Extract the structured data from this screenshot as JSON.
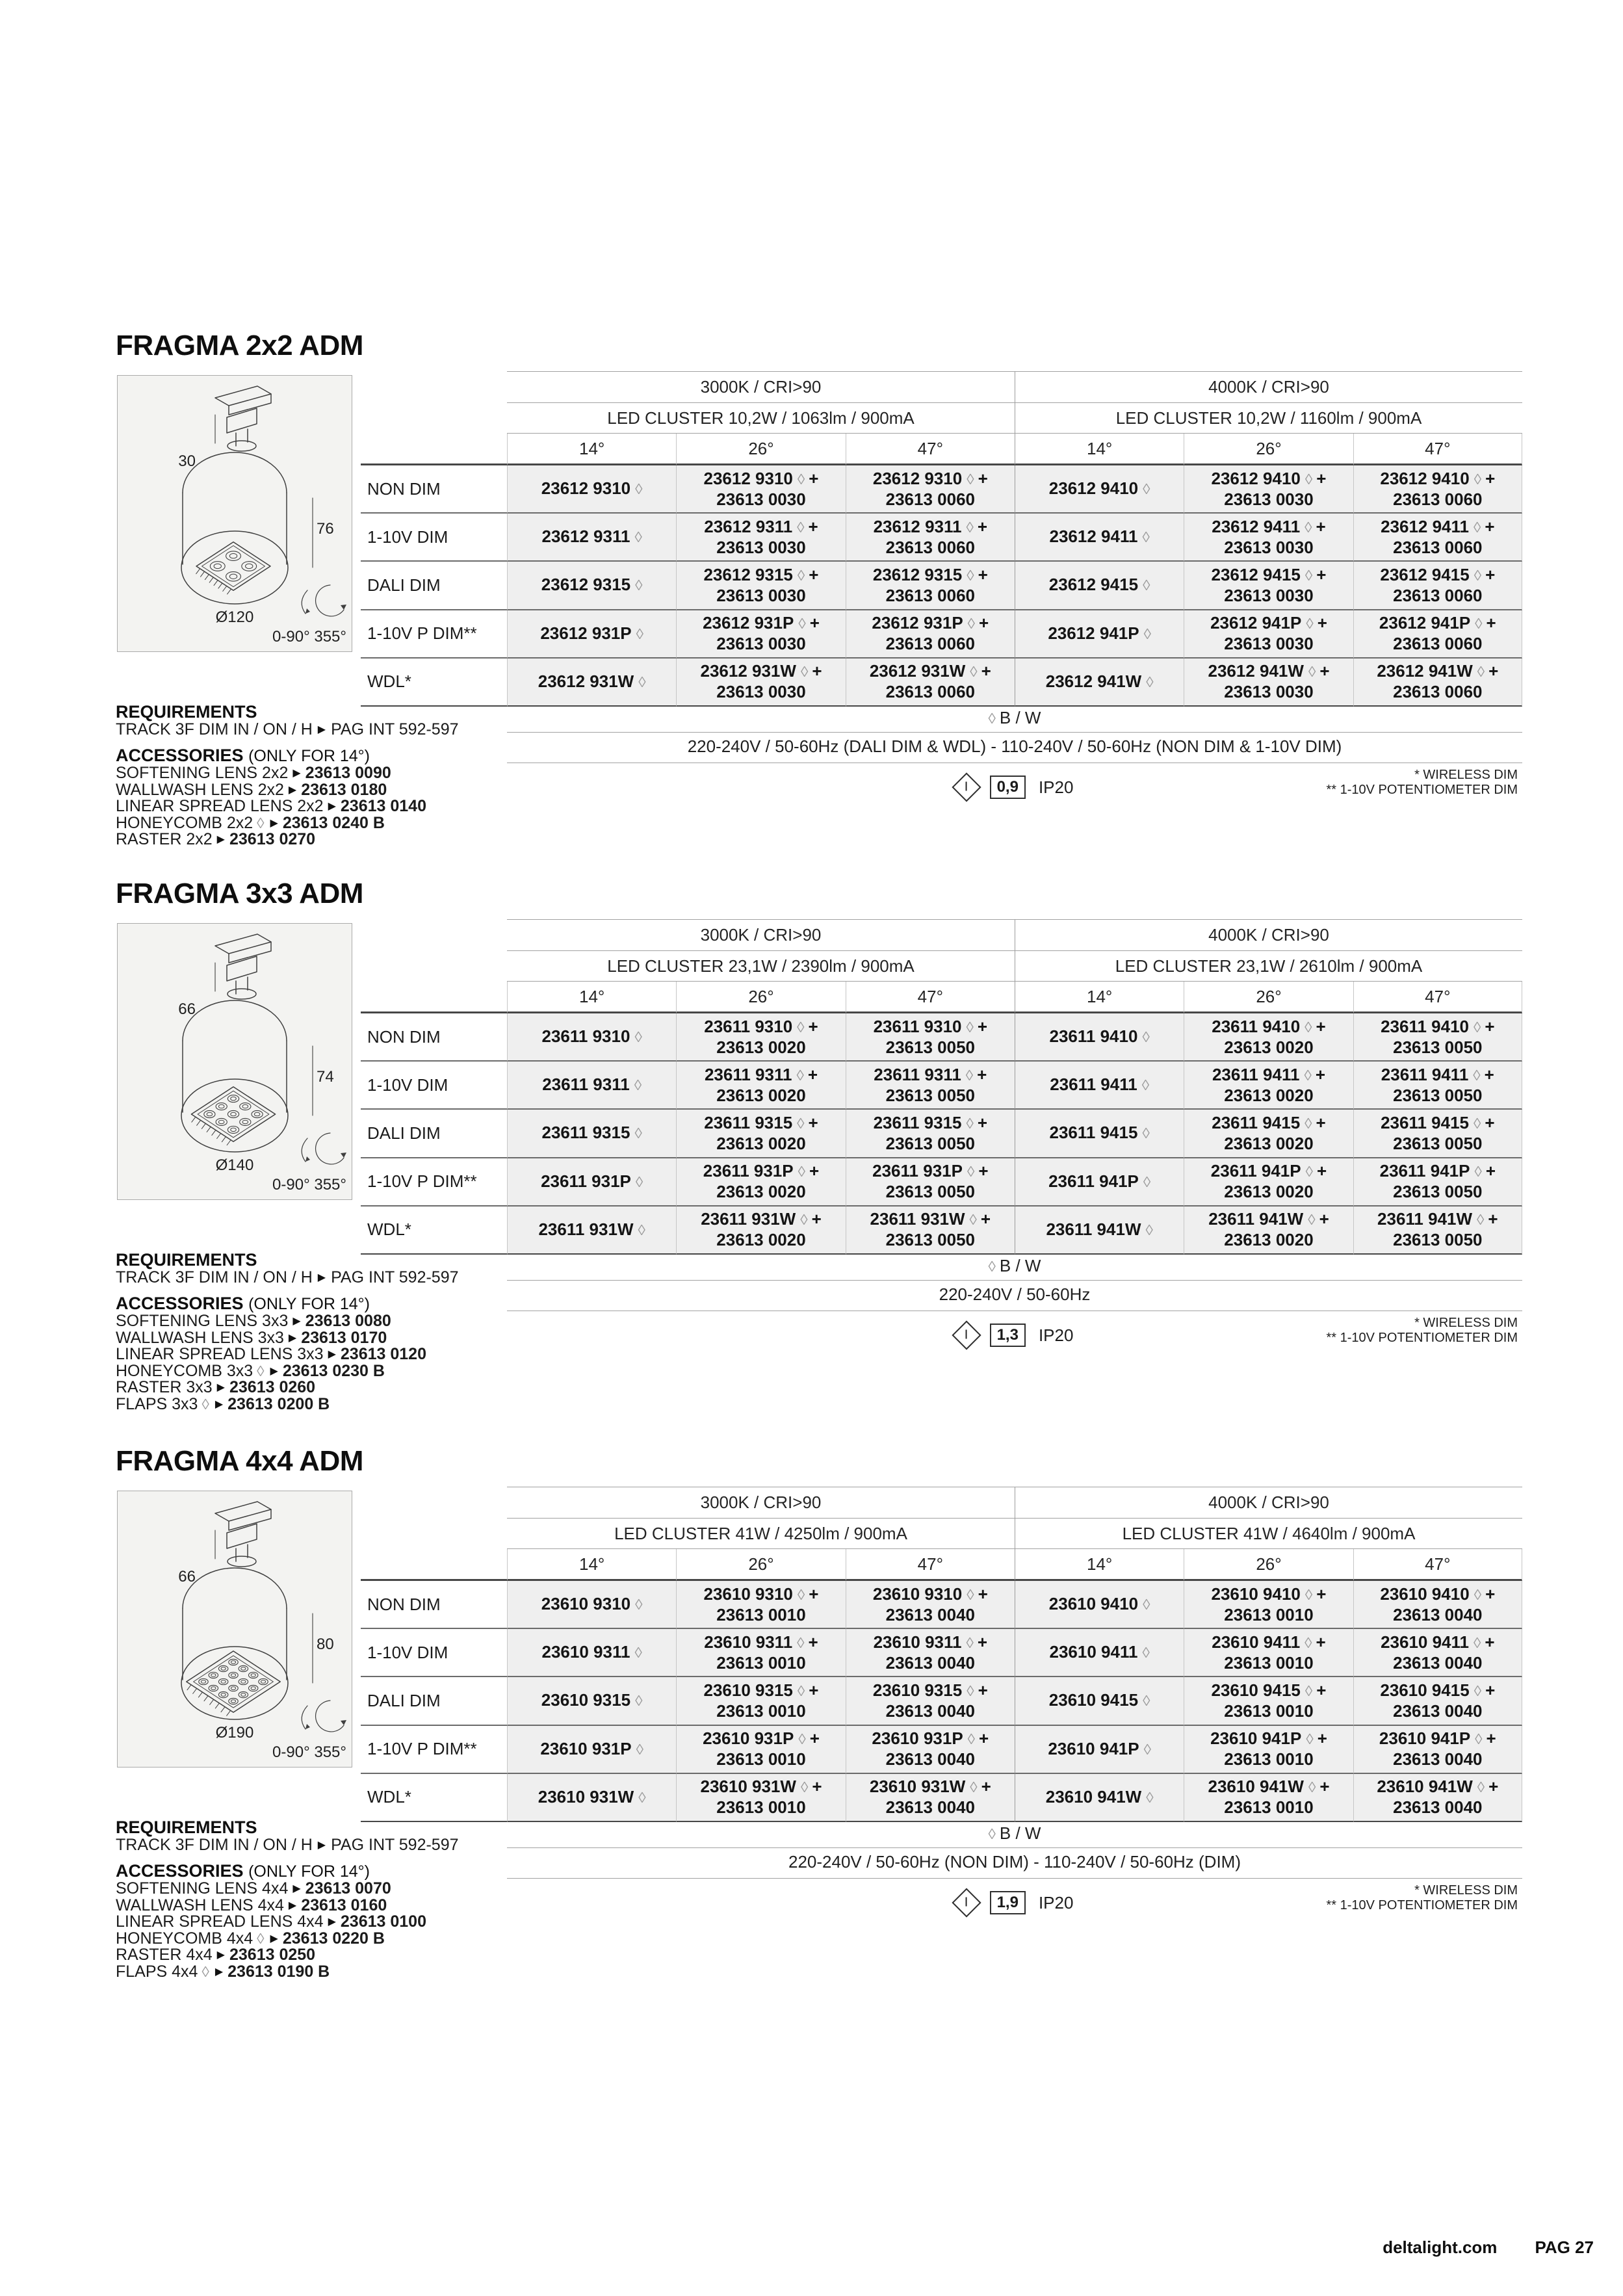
{
  "page": {
    "footer": {
      "site": "deltalight.com",
      "page_label": "PAG 27"
    }
  },
  "notes": {
    "diamond": "◊",
    "plus": "+",
    "arrow": "▶",
    "class1": "I",
    "diamond_note": "B / W",
    "wireless": "* WIRELESS DIM",
    "potentiometer": "** 1-10V POTENTIOMETER DIM",
    "ip": "IP20"
  },
  "sections": [
    {
      "id": "fragma-2x2-adm",
      "title": "FRAGMA 2x2 ADM",
      "diagram": {
        "grid": 2,
        "top_dim": "30",
        "height_dim": "76",
        "diameter": "Ø120",
        "rotation": "0-90° 355°"
      },
      "header": {
        "left_temp": "3000K / CRI>90",
        "right_temp": "4000K / CRI>90",
        "left_cluster": "LED CLUSTER 10,2W / 1063lm / 900mA",
        "right_cluster": "LED CLUSTER 10,2W / 1160lm / 900mA",
        "angles": [
          "14°",
          "26°",
          "47°",
          "14°",
          "26°",
          "47°"
        ]
      },
      "rows": [
        {
          "label": "NON DIM",
          "cells": [
            [
              "23612 9310",
              ""
            ],
            [
              "23612 9310",
              "23613 0030"
            ],
            [
              "23612 9310",
              "23613 0060"
            ],
            [
              "23612 9410",
              ""
            ],
            [
              "23612 9410",
              "23613 0030"
            ],
            [
              "23612 9410",
              "23613 0060"
            ]
          ]
        },
        {
          "label": "1-10V DIM",
          "cells": [
            [
              "23612 9311",
              ""
            ],
            [
              "23612 9311",
              "23613 0030"
            ],
            [
              "23612 9311",
              "23613 0060"
            ],
            [
              "23612 9411",
              ""
            ],
            [
              "23612 9411",
              "23613 0030"
            ],
            [
              "23612 9411",
              "23613 0060"
            ]
          ]
        },
        {
          "label": "DALI DIM",
          "cells": [
            [
              "23612 9315",
              ""
            ],
            [
              "23612 9315",
              "23613 0030"
            ],
            [
              "23612 9315",
              "23613 0060"
            ],
            [
              "23612 9415",
              ""
            ],
            [
              "23612 9415",
              "23613 0030"
            ],
            [
              "23612 9415",
              "23613 0060"
            ]
          ]
        },
        {
          "label": "1-10V P DIM**",
          "cells": [
            [
              "23612 931P",
              ""
            ],
            [
              "23612 931P",
              "23613 0030"
            ],
            [
              "23612 931P",
              "23613 0060"
            ],
            [
              "23612 941P",
              ""
            ],
            [
              "23612 941P",
              "23613 0030"
            ],
            [
              "23612 941P",
              "23613 0060"
            ]
          ]
        },
        {
          "label": "WDL*",
          "cells": [
            [
              "23612 931W",
              ""
            ],
            [
              "23612 931W",
              "23613 0030"
            ],
            [
              "23612 931W",
              "23613 0060"
            ],
            [
              "23612 941W",
              ""
            ],
            [
              "23612 941W",
              "23613 0030"
            ],
            [
              "23612 941W",
              "23613 0060"
            ]
          ]
        }
      ],
      "voltage": "220-240V / 50-60Hz (DALI DIM & WDL)  -  110-240V / 50-60Hz (NON DIM & 1-10V DIM)",
      "weight": "0,9",
      "requirements": {
        "heading": "REQUIREMENTS",
        "line_before": "TRACK 3F DIM IN / ON / H",
        "line_after": "PAG INT 592-597"
      },
      "accessories": {
        "heading": "ACCESSORIES",
        "note": "(ONLY FOR 14°)",
        "items": [
          {
            "label": "SOFTENING LENS 2x2",
            "diamond": false,
            "code": "23613 0090"
          },
          {
            "label": "WALLWASH LENS 2x2",
            "diamond": false,
            "code": "23613 0180"
          },
          {
            "label": "LINEAR SPREAD LENS 2x2",
            "diamond": false,
            "code": "23613 0140"
          },
          {
            "label": "HONEYCOMB 2x2",
            "diamond": true,
            "code": "23613 0240 B"
          },
          {
            "label": "RASTER 2x2",
            "diamond": false,
            "code": "23613 0270"
          }
        ]
      }
    },
    {
      "id": "fragma-3x3-adm",
      "title": "FRAGMA 3x3 ADM",
      "diagram": {
        "grid": 3,
        "top_dim": "66",
        "height_dim": "74",
        "diameter": "Ø140",
        "rotation": "0-90° 355°"
      },
      "header": {
        "left_temp": "3000K / CRI>90",
        "right_temp": "4000K / CRI>90",
        "left_cluster": "LED CLUSTER 23,1W / 2390lm / 900mA",
        "right_cluster": "LED CLUSTER 23,1W / 2610lm / 900mA",
        "angles": [
          "14°",
          "26°",
          "47°",
          "14°",
          "26°",
          "47°"
        ]
      },
      "rows": [
        {
          "label": "NON DIM",
          "cells": [
            [
              "23611 9310",
              ""
            ],
            [
              "23611 9310",
              "23613 0020"
            ],
            [
              "23611 9310",
              "23613 0050"
            ],
            [
              "23611 9410",
              ""
            ],
            [
              "23611 9410",
              "23613 0020"
            ],
            [
              "23611 9410",
              "23613 0050"
            ]
          ]
        },
        {
          "label": "1-10V DIM",
          "cells": [
            [
              "23611 9311",
              ""
            ],
            [
              "23611 9311",
              "23613 0020"
            ],
            [
              "23611 9311",
              "23613 0050"
            ],
            [
              "23611 9411",
              ""
            ],
            [
              "23611 9411",
              "23613 0020"
            ],
            [
              "23611 9411",
              "23613 0050"
            ]
          ]
        },
        {
          "label": "DALI DIM",
          "cells": [
            [
              "23611 9315",
              ""
            ],
            [
              "23611 9315",
              "23613 0020"
            ],
            [
              "23611 9315",
              "23613 0050"
            ],
            [
              "23611 9415",
              ""
            ],
            [
              "23611 9415",
              "23613 0020"
            ],
            [
              "23611 9415",
              "23613 0050"
            ]
          ]
        },
        {
          "label": "1-10V P DIM**",
          "cells": [
            [
              "23611 931P",
              ""
            ],
            [
              "23611 931P",
              "23613 0020"
            ],
            [
              "23611 931P",
              "23613 0050"
            ],
            [
              "23611 941P",
              ""
            ],
            [
              "23611 941P",
              "23613 0020"
            ],
            [
              "23611 941P",
              "23613 0050"
            ]
          ]
        },
        {
          "label": "WDL*",
          "cells": [
            [
              "23611 931W",
              ""
            ],
            [
              "23611 931W",
              "23613 0020"
            ],
            [
              "23611 931W",
              "23613 0050"
            ],
            [
              "23611 941W",
              ""
            ],
            [
              "23611 941W",
              "23613 0020"
            ],
            [
              "23611 941W",
              "23613 0050"
            ]
          ]
        }
      ],
      "voltage": "220-240V / 50-60Hz",
      "weight": "1,3",
      "requirements": {
        "heading": "REQUIREMENTS",
        "line_before": "TRACK 3F DIM IN / ON / H",
        "line_after": "PAG INT 592-597"
      },
      "accessories": {
        "heading": "ACCESSORIES",
        "note": "(ONLY FOR 14°)",
        "items": [
          {
            "label": "SOFTENING LENS 3x3",
            "diamond": false,
            "code": "23613 0080"
          },
          {
            "label": "WALLWASH LENS 3x3",
            "diamond": false,
            "code": "23613 0170"
          },
          {
            "label": "LINEAR SPREAD LENS 3x3",
            "diamond": false,
            "code": "23613 0120"
          },
          {
            "label": "HONEYCOMB 3x3",
            "diamond": true,
            "code": "23613 0230 B"
          },
          {
            "label": "RASTER 3x3",
            "diamond": false,
            "code": "23613 0260"
          },
          {
            "label": "FLAPS 3x3",
            "diamond": true,
            "code": "23613 0200 B"
          }
        ]
      }
    },
    {
      "id": "fragma-4x4-adm",
      "title": "FRAGMA 4x4 ADM",
      "diagram": {
        "grid": 4,
        "top_dim": "66",
        "height_dim": "80",
        "diameter": "Ø190",
        "rotation": "0-90° 355°"
      },
      "header": {
        "left_temp": "3000K / CRI>90",
        "right_temp": "4000K / CRI>90",
        "left_cluster": "LED CLUSTER 41W / 4250lm / 900mA",
        "right_cluster": "LED CLUSTER 41W / 4640lm / 900mA",
        "angles": [
          "14°",
          "26°",
          "47°",
          "14°",
          "26°",
          "47°"
        ]
      },
      "rows": [
        {
          "label": "NON DIM",
          "cells": [
            [
              "23610 9310",
              ""
            ],
            [
              "23610 9310",
              "23613 0010"
            ],
            [
              "23610 9310",
              "23613 0040"
            ],
            [
              "23610 9410",
              ""
            ],
            [
              "23610 9410",
              "23613 0010"
            ],
            [
              "23610 9410",
              "23613 0040"
            ]
          ]
        },
        {
          "label": "1-10V DIM",
          "cells": [
            [
              "23610 9311",
              ""
            ],
            [
              "23610 9311",
              "23613 0010"
            ],
            [
              "23610 9311",
              "23613 0040"
            ],
            [
              "23610 9411",
              ""
            ],
            [
              "23610 9411",
              "23613 0010"
            ],
            [
              "23610 9411",
              "23613 0040"
            ]
          ]
        },
        {
          "label": "DALI DIM",
          "cells": [
            [
              "23610 9315",
              ""
            ],
            [
              "23610 9315",
              "23613 0010"
            ],
            [
              "23610 9315",
              "23613 0040"
            ],
            [
              "23610 9415",
              ""
            ],
            [
              "23610 9415",
              "23613 0010"
            ],
            [
              "23610 9415",
              "23613 0040"
            ]
          ]
        },
        {
          "label": "1-10V P DIM**",
          "cells": [
            [
              "23610 931P",
              ""
            ],
            [
              "23610 931P",
              "23613 0010"
            ],
            [
              "23610 931P",
              "23613 0040"
            ],
            [
              "23610 941P",
              ""
            ],
            [
              "23610 941P",
              "23613 0010"
            ],
            [
              "23610 941P",
              "23613 0040"
            ]
          ]
        },
        {
          "label": "WDL*",
          "cells": [
            [
              "23610 931W",
              ""
            ],
            [
              "23610 931W",
              "23613 0010"
            ],
            [
              "23610 931W",
              "23613 0040"
            ],
            [
              "23610 941W",
              ""
            ],
            [
              "23610 941W",
              "23613 0010"
            ],
            [
              "23610 941W",
              "23613 0040"
            ]
          ]
        }
      ],
      "voltage": "220-240V / 50-60Hz (NON DIM)  -  110-240V / 50-60Hz (DIM)",
      "weight": "1,9",
      "requirements": {
        "heading": "REQUIREMENTS",
        "line_before": "TRACK 3F DIM IN / ON / H",
        "line_after": "PAG INT 592-597"
      },
      "accessories": {
        "heading": "ACCESSORIES",
        "note": "(ONLY FOR 14°)",
        "items": [
          {
            "label": "SOFTENING LENS 4x4",
            "diamond": false,
            "code": "23613 0070"
          },
          {
            "label": "WALLWASH LENS 4x4",
            "diamond": false,
            "code": "23613 0160"
          },
          {
            "label": "LINEAR SPREAD LENS 4x4",
            "diamond": false,
            "code": "23613 0100"
          },
          {
            "label": "HONEYCOMB 4x4",
            "diamond": true,
            "code": "23613 0220 B"
          },
          {
            "label": "RASTER 4x4",
            "diamond": false,
            "code": "23613 0250"
          },
          {
            "label": "FLAPS 4x4",
            "diamond": true,
            "code": "23613 0190 B"
          }
        ]
      }
    }
  ]
}
